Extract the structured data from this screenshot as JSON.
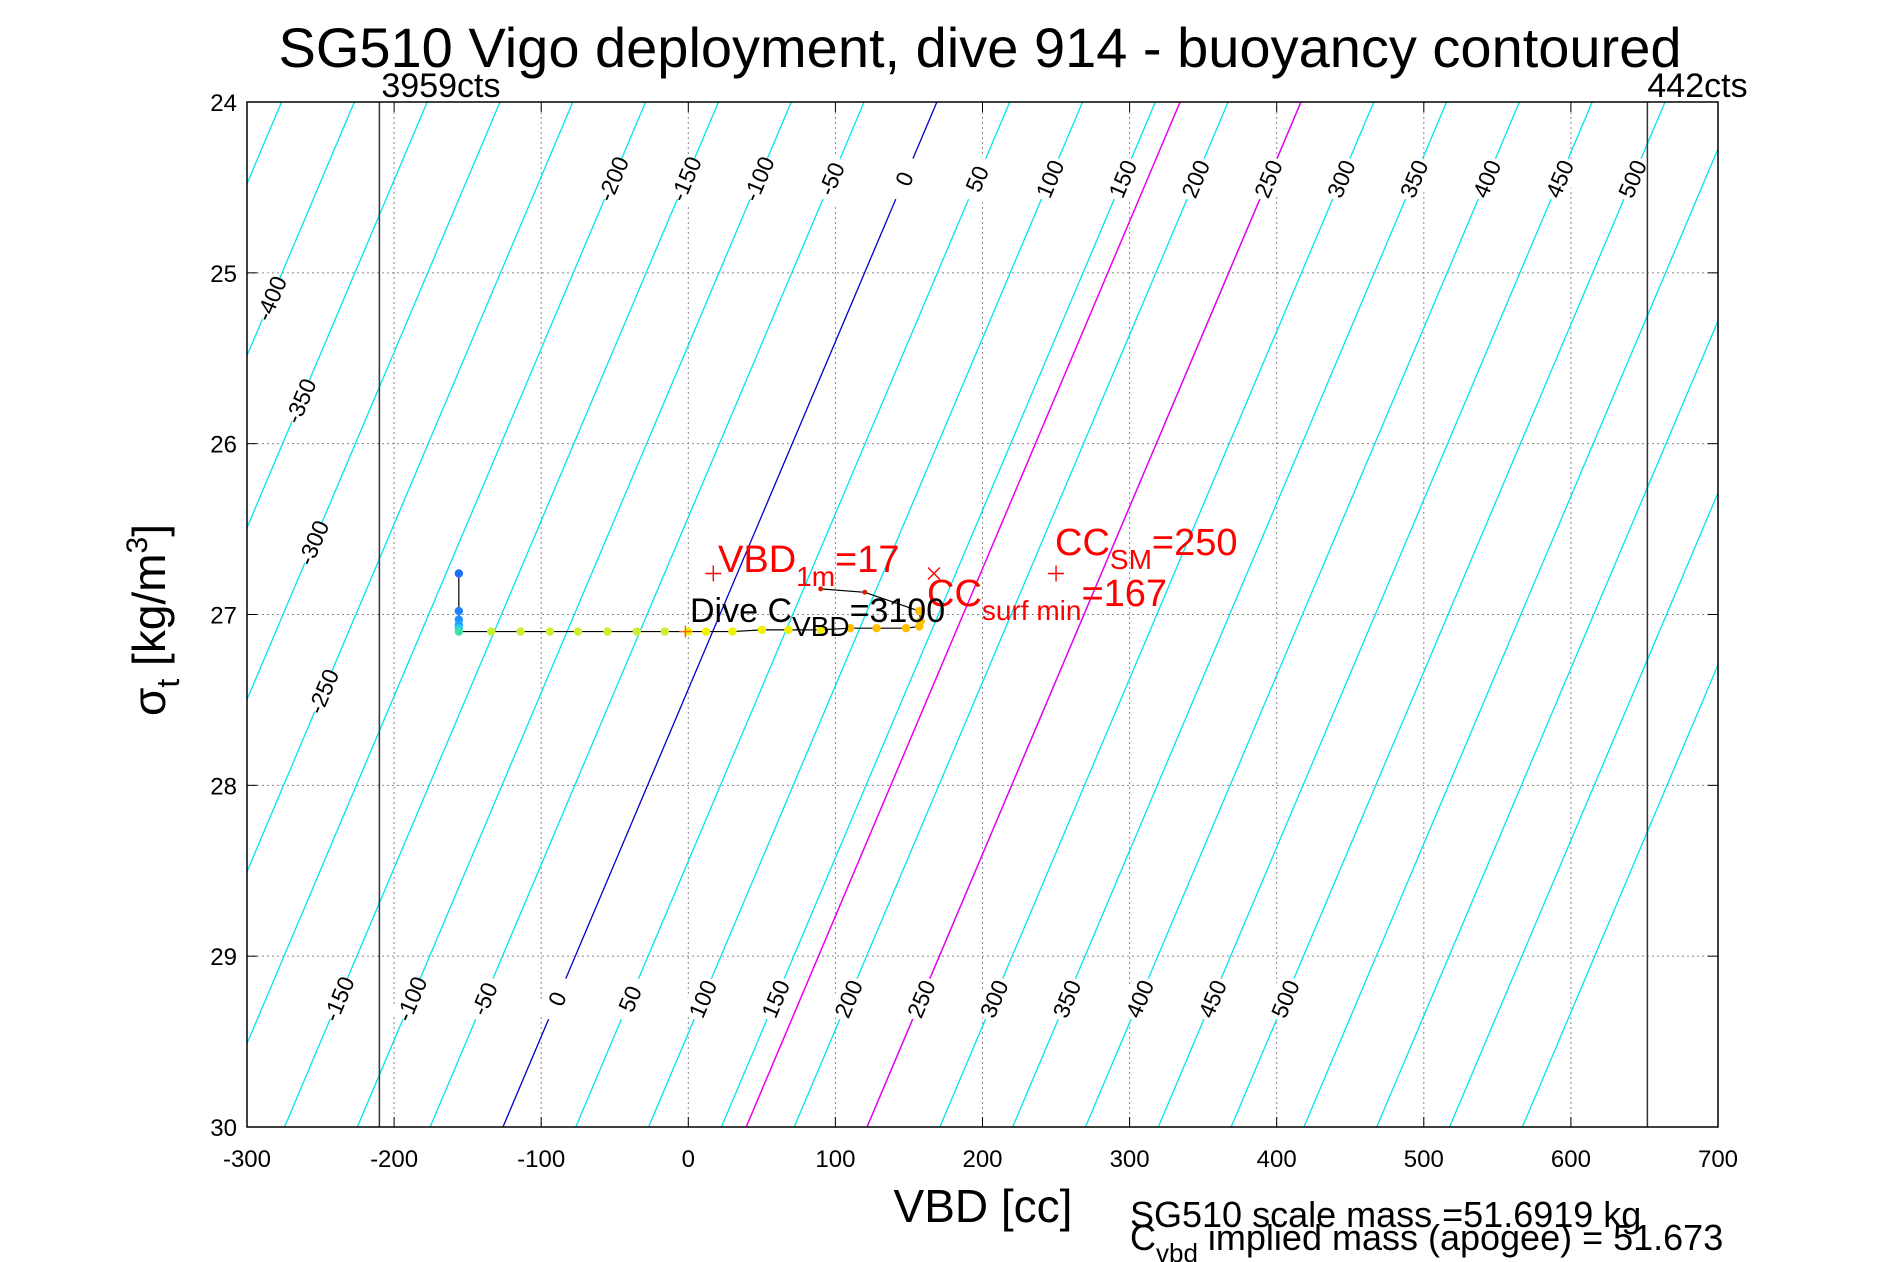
{
  "chart_data": {
    "type": "scatter",
    "title": "SG510 Vigo deployment, dive 914 - buoyancy contoured",
    "xlabel": "VBD [cc]",
    "ylabel_main": "σ",
    "ylabel_sub": "t",
    "ylabel_unit_pre": " [kg/m",
    "ylabel_unit_sup": "3",
    "ylabel_unit_post": "]",
    "xlim": [
      -300,
      700
    ],
    "ylim": [
      24,
      30
    ],
    "y_reversed": true,
    "grid": true,
    "x_ticks": [
      -300,
      -200,
      -100,
      0,
      100,
      200,
      300,
      400,
      500,
      600,
      700
    ],
    "y_ticks": [
      24,
      25,
      26,
      27,
      28,
      29,
      30
    ],
    "limit_lines": [
      {
        "x": -210,
        "label": "3959cts"
      },
      {
        "x": 652,
        "label": "442cts"
      }
    ],
    "contours": {
      "levels": [
        -400,
        -350,
        -300,
        -250,
        -200,
        -150,
        -100,
        -50,
        0,
        50,
        100,
        150,
        200,
        250,
        300,
        350,
        400,
        450,
        500
      ],
      "zero_level": 0,
      "highlight_levels": [
        167,
        250
      ],
      "color_default": "#00e5ee",
      "color_zero": "#0000cd",
      "color_highlight": "#ee00ee",
      "top_labels": [
        "-400",
        "-350",
        "-300",
        "-250",
        "-200",
        "-150",
        "-100",
        "-50",
        "0",
        "50",
        "100",
        "150",
        "200",
        "250",
        "300",
        "350",
        "400",
        "450",
        "500"
      ],
      "bottom_labels": [
        "-150",
        "-100",
        "-50",
        "0",
        "50",
        "100",
        "150",
        "200",
        "250",
        "300",
        "350",
        "400",
        "450",
        "500"
      ]
    },
    "dive_profile": {
      "x": [
        -156,
        -156,
        -156,
        -156,
        -156,
        -156,
        -134,
        -114,
        -94,
        -75,
        -55,
        -35,
        -16,
        0,
        12,
        30,
        50,
        68,
        90,
        110,
        128,
        148,
        157,
        158,
        157,
        120,
        90
      ],
      "y": [
        26.76,
        26.98,
        27.03,
        27.06,
        27.08,
        27.1,
        27.1,
        27.1,
        27.1,
        27.1,
        27.1,
        27.1,
        27.1,
        27.1,
        27.1,
        27.1,
        27.09,
        27.09,
        27.09,
        27.08,
        27.08,
        27.08,
        27.07,
        27.04,
        26.98,
        26.87,
        26.85
      ]
    },
    "annotations": {
      "vbd_1m": {
        "x": 17,
        "y": 26.76,
        "label_main": "VBD",
        "label_sub": "1m",
        "label_val": "=17",
        "color": "#ff0000"
      },
      "cc_sm": {
        "x": 250,
        "y": 26.76,
        "label_main": "CC",
        "label_sub": "SM",
        "label_val": "=250",
        "color": "#ff0000"
      },
      "cc_surf_min": {
        "x": 167,
        "y": 26.76,
        "label_main": "CC",
        "label_sub": "surf min",
        "label_val": "=167",
        "color": "#ff0000"
      },
      "dive_c_vbd": {
        "label_main": "Dive C",
        "label_sub": "VBD",
        "label_val": "=3100",
        "color": "#000000"
      }
    },
    "footer": {
      "line1": "SG510 scale mass =51.6919 kg",
      "line2_main": "C",
      "line2_sub": "vbd",
      "line2_rest": " implied mass (apogee) = 51.673"
    }
  }
}
